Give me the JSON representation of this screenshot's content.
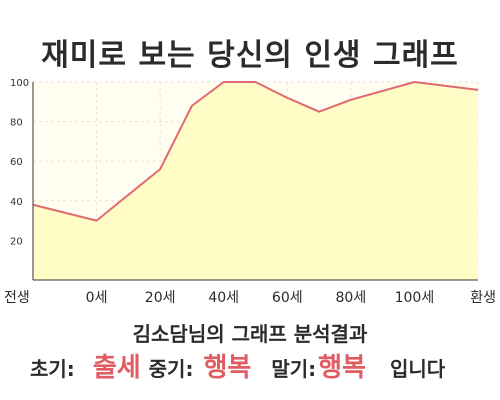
{
  "title": "재미로 보는 당신의 인생 그래프",
  "result": {
    "heading": "김소담님의 그래프 분석결과",
    "early_label": "초기:",
    "early_value": "출세",
    "middle_label": "중기:",
    "middle_value": "행복",
    "late_label": "말기:",
    "late_value": "행복",
    "ending": "입니다"
  },
  "colors": {
    "line": "#e06a72",
    "fill": "#fffcc6",
    "grid": "#e8e6d0",
    "accent": "#e15b63",
    "axis": "#333333"
  },
  "chart_data": {
    "type": "area",
    "x_labels": [
      "전생",
      "0세",
      "20세",
      "40세",
      "60세",
      "80세",
      "100세",
      "환생"
    ],
    "points": [
      {
        "x": "전생",
        "y": 38
      },
      {
        "x": "0세",
        "y": 30
      },
      {
        "x": "20세",
        "y": 56
      },
      {
        "x": "30세",
        "y": 88
      },
      {
        "x": "40세",
        "y": 100
      },
      {
        "x": "50세",
        "y": 100
      },
      {
        "x": "60세",
        "y": 92
      },
      {
        "x": "70세",
        "y": 85
      },
      {
        "x": "80세",
        "y": 91
      },
      {
        "x": "100세",
        "y": 100
      },
      {
        "x": "환생",
        "y": 96
      }
    ],
    "y_ticks": [
      20,
      40,
      60,
      80,
      100
    ],
    "ylim": [
      0,
      100
    ],
    "grid": true,
    "legend": "none"
  }
}
